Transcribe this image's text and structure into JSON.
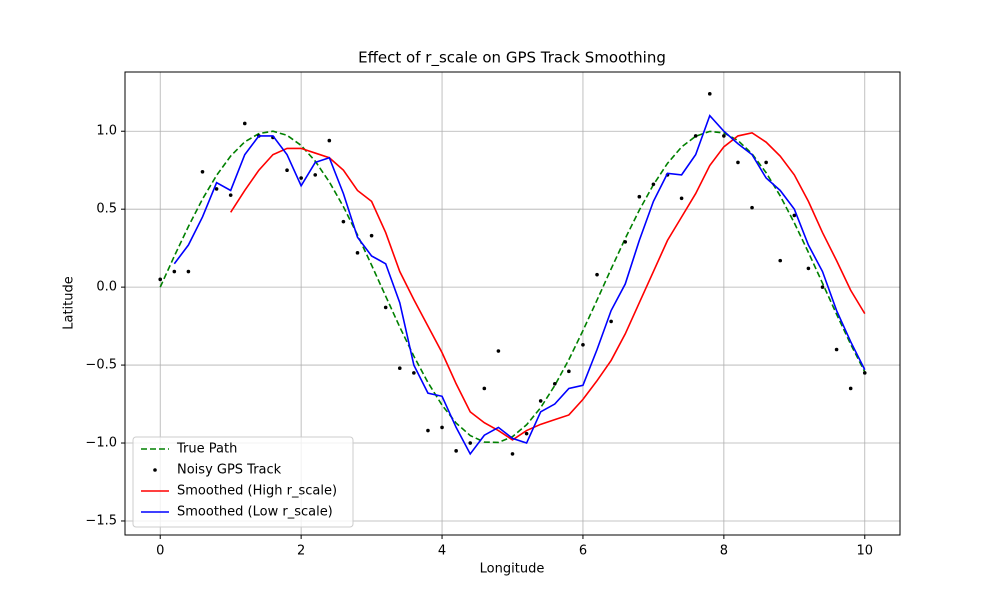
{
  "chart_data": {
    "type": "line",
    "title": "Effect of r_scale on GPS Track Smoothing",
    "x_label": "Longitude",
    "y_label": "Latitude",
    "x": [
      0,
      0.2,
      0.4,
      0.6,
      0.8,
      1.0,
      1.2,
      1.4,
      1.6,
      1.8,
      2.0,
      2.2,
      2.4,
      2.6,
      2.8,
      3.0,
      3.2,
      3.4,
      3.6,
      3.8,
      4.0,
      4.2,
      4.4,
      4.6,
      4.8,
      5.0,
      5.2,
      5.4,
      5.6,
      5.8,
      6.0,
      6.2,
      6.4,
      6.6,
      6.8,
      7.0,
      7.2,
      7.4,
      7.6,
      7.8,
      8.0,
      8.2,
      8.4,
      8.6,
      8.8,
      9.0,
      9.2,
      9.4,
      9.6,
      9.8,
      10.0
    ],
    "series": [
      {
        "name": "True Path",
        "color": "#008000",
        "style": "dashed",
        "values": [
          0,
          0.199,
          0.389,
          0.565,
          0.717,
          0.841,
          0.932,
          0.985,
          1.0,
          0.974,
          0.909,
          0.808,
          0.675,
          0.516,
          0.335,
          0.141,
          -0.058,
          -0.256,
          -0.443,
          -0.612,
          -0.757,
          -0.872,
          -0.952,
          -0.994,
          -0.996,
          -0.959,
          -0.883,
          -0.773,
          -0.631,
          -0.465,
          -0.279,
          -0.083,
          0.117,
          0.312,
          0.494,
          0.657,
          0.794,
          0.899,
          0.968,
          0.999,
          0.989,
          0.941,
          0.855,
          0.734,
          0.585,
          0.412,
          0.223,
          0.025,
          -0.174,
          -0.366,
          -0.544
        ]
      },
      {
        "name": "Noisy GPS Track",
        "color": "#000000",
        "style": "points",
        "values": [
          0.05,
          0.1,
          0.1,
          0.74,
          0.63,
          0.59,
          1.05,
          0.97,
          0.96,
          0.75,
          0.7,
          0.72,
          0.94,
          0.42,
          0.22,
          0.33,
          -0.13,
          -0.52,
          -0.55,
          -0.92,
          -0.9,
          -1.05,
          -1.0,
          -0.65,
          -0.41,
          -1.07,
          -0.94,
          -0.73,
          -0.62,
          -0.54,
          -0.37,
          0.08,
          -0.22,
          0.29,
          0.58,
          0.66,
          0.72,
          0.57,
          0.97,
          1.24,
          0.97,
          0.8,
          0.51,
          0.8,
          0.17,
          0.46,
          0.12,
          0.0,
          -0.4,
          -0.65,
          -0.55
        ]
      },
      {
        "name": "Smoothed (High r_scale)",
        "color": "#ff0000",
        "style": "solid",
        "values": [
          null,
          null,
          null,
          null,
          null,
          0.48,
          0.62,
          0.75,
          0.85,
          0.89,
          0.89,
          0.86,
          0.83,
          0.75,
          0.62,
          0.55,
          0.35,
          0.1,
          -0.08,
          -0.25,
          -0.42,
          -0.62,
          -0.8,
          -0.87,
          -0.92,
          -0.98,
          -0.92,
          -0.88,
          -0.85,
          -0.82,
          -0.72,
          -0.6,
          -0.47,
          -0.3,
          -0.1,
          0.1,
          0.3,
          0.45,
          0.6,
          0.78,
          0.9,
          0.97,
          0.99,
          0.93,
          0.84,
          0.72,
          0.55,
          0.35,
          0.17,
          -0.02,
          -0.17
        ]
      },
      {
        "name": "Smoothed (Low r_scale)",
        "color": "#0000ff",
        "style": "solid",
        "values": [
          null,
          0.15,
          0.27,
          0.45,
          0.67,
          0.62,
          0.85,
          0.97,
          0.97,
          0.85,
          0.65,
          0.8,
          0.83,
          0.6,
          0.32,
          0.2,
          0.15,
          -0.1,
          -0.5,
          -0.68,
          -0.7,
          -0.9,
          -1.07,
          -0.95,
          -0.9,
          -0.97,
          -1.0,
          -0.8,
          -0.75,
          -0.65,
          -0.63,
          -0.4,
          -0.15,
          0.02,
          0.3,
          0.55,
          0.73,
          0.72,
          0.85,
          1.1,
          1.0,
          0.92,
          0.85,
          0.7,
          0.62,
          0.5,
          0.27,
          0.1,
          -0.15,
          -0.35,
          -0.53
        ]
      }
    ],
    "xlim": [
      -0.5,
      10.5
    ],
    "ylim": [
      -1.59,
      1.38
    ],
    "xticks": [
      0,
      2,
      4,
      6,
      8,
      10
    ],
    "yticks": [
      {
        "value": -1.5,
        "label": "−1.5"
      },
      {
        "value": -1.0,
        "label": "−1.0"
      },
      {
        "value": -0.5,
        "label": "−0.5"
      },
      {
        "value": 0,
        "label": "0.0"
      },
      {
        "value": 0.5,
        "label": "0.5"
      },
      {
        "value": 1.0,
        "label": "1.0"
      }
    ],
    "grid": true,
    "legend": "lower left"
  }
}
